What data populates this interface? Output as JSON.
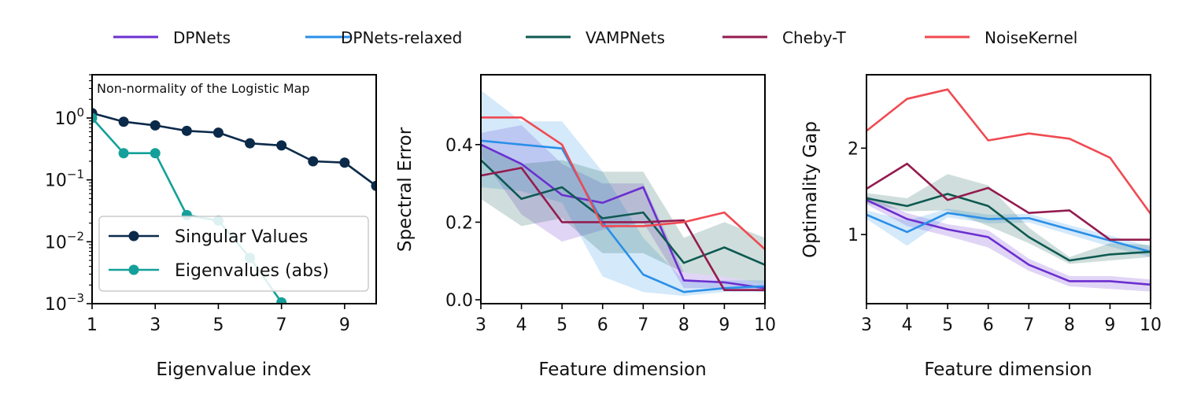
{
  "legend": [
    {
      "name": "DPNets",
      "color": "#6B2FD0"
    },
    {
      "name": "DPNets-relaxed",
      "color": "#2A8FE8"
    },
    {
      "name": "VAMPNets",
      "color": "#0E5A52"
    },
    {
      "name": "Cheby-T",
      "color": "#931C4F"
    },
    {
      "name": "NoiseKernel",
      "color": "#F04A52"
    }
  ],
  "chart_data": [
    {
      "type": "line",
      "title": "Non-normality of the Logistic Map",
      "xlabel": "Eigenvalue index",
      "ylabel": "",
      "yscale": "log",
      "xlim": [
        1,
        10
      ],
      "ylim": [
        0.001,
        5
      ],
      "xticks": [
        1,
        3,
        5,
        7,
        9
      ],
      "yticks": [
        1,
        0.1,
        0.01,
        0.001
      ],
      "ytick_labels": [
        {
          "base": "10",
          "exp": "0"
        },
        {
          "base": "10",
          "exp": "−1"
        },
        {
          "base": "10",
          "exp": "−2"
        },
        {
          "base": "10",
          "exp": "−3"
        }
      ],
      "series": [
        {
          "name": "Singular Values",
          "color": "#0B2A4A",
          "marker": "circle",
          "x": [
            1,
            2,
            3,
            4,
            5,
            6,
            7,
            8,
            9,
            10
          ],
          "values": [
            1.2,
            0.87,
            0.76,
            0.62,
            0.58,
            0.39,
            0.36,
            0.2,
            0.19,
            0.08
          ]
        },
        {
          "name": "Eigenvalues (abs)",
          "color": "#14A09A",
          "marker": "circle",
          "x": [
            1,
            2,
            3,
            4,
            5,
            6,
            7
          ],
          "values": [
            1.0,
            0.27,
            0.27,
            0.027,
            0.022,
            0.0055,
            0.00105
          ]
        }
      ],
      "legend_location": "lower-left"
    },
    {
      "type": "line",
      "xlabel": "Feature dimension",
      "ylabel": "Spectral Error",
      "xlim": [
        3,
        10
      ],
      "ylim": [
        -0.01,
        0.58
      ],
      "xticks": [
        3,
        4,
        5,
        6,
        7,
        8,
        9,
        10
      ],
      "yticks": [
        0.0,
        0.2,
        0.4
      ],
      "ytick_labels": [
        "0.0",
        "0.2",
        "0.4"
      ],
      "x": [
        3,
        4,
        5,
        6,
        7,
        8,
        9,
        10
      ],
      "series": [
        {
          "name": "DPNets",
          "values": [
            0.4,
            0.35,
            0.27,
            0.25,
            0.29,
            0.05,
            0.045,
            0.03
          ],
          "lower": [
            0.37,
            0.22,
            0.15,
            0.18,
            0.2,
            0.03,
            0.03,
            0.02
          ],
          "upper": [
            0.43,
            0.45,
            0.35,
            0.3,
            0.3,
            0.07,
            0.06,
            0.04
          ]
        },
        {
          "name": "DPNets-relaxed",
          "values": [
            0.41,
            0.4,
            0.39,
            0.2,
            0.065,
            0.02,
            0.03,
            0.035
          ],
          "lower": [
            0.29,
            0.28,
            0.25,
            0.06,
            0.02,
            0.01,
            0.02,
            0.02
          ],
          "upper": [
            0.54,
            0.46,
            0.46,
            0.33,
            0.16,
            0.05,
            0.05,
            0.05
          ]
        },
        {
          "name": "VAMPNets",
          "values": [
            0.36,
            0.26,
            0.29,
            0.21,
            0.225,
            0.095,
            0.135,
            0.09
          ],
          "lower": [
            0.26,
            0.19,
            0.21,
            0.12,
            0.12,
            0.07,
            0.06,
            0.04
          ],
          "upper": [
            0.4,
            0.35,
            0.36,
            0.33,
            0.33,
            0.16,
            0.2,
            0.16
          ]
        },
        {
          "name": "Cheby-T",
          "values": [
            0.32,
            0.34,
            0.2,
            0.2,
            0.2,
            0.205,
            0.025,
            0.025
          ]
        },
        {
          "name": "NoiseKernel",
          "values": [
            0.47,
            0.47,
            0.4,
            0.19,
            0.19,
            0.2,
            0.225,
            0.13
          ]
        }
      ]
    },
    {
      "type": "line",
      "xlabel": "Feature dimension",
      "ylabel": "Optimality Gap",
      "xlim": [
        3,
        10
      ],
      "ylim": [
        0.2,
        2.85
      ],
      "xticks": [
        3,
        4,
        5,
        6,
        7,
        8,
        9,
        10
      ],
      "yticks": [
        1,
        2
      ],
      "ytick_labels": [
        "1",
        "2"
      ],
      "x": [
        3,
        4,
        5,
        6,
        7,
        8,
        9,
        10
      ],
      "series": [
        {
          "name": "DPNets",
          "values": [
            1.4,
            1.18,
            1.06,
            0.97,
            0.65,
            0.46,
            0.46,
            0.42
          ],
          "lower": [
            1.35,
            1.1,
            0.98,
            0.85,
            0.58,
            0.4,
            0.37,
            0.34
          ],
          "upper": [
            1.45,
            1.25,
            1.12,
            1.05,
            0.72,
            0.52,
            0.52,
            0.48
          ]
        },
        {
          "name": "DPNets-relaxed",
          "values": [
            1.23,
            1.03,
            1.25,
            1.18,
            1.19,
            1.06,
            0.93,
            0.8
          ],
          "lower": [
            1.18,
            0.87,
            1.2,
            1.13,
            1.14,
            1.0,
            0.86,
            0.74
          ],
          "upper": [
            1.28,
            1.16,
            1.3,
            1.23,
            1.24,
            1.11,
            0.99,
            0.86
          ]
        },
        {
          "name": "VAMPNets",
          "values": [
            1.42,
            1.33,
            1.47,
            1.33,
            0.97,
            0.7,
            0.77,
            0.8
          ],
          "lower": [
            1.36,
            1.27,
            1.28,
            1.1,
            0.9,
            0.66,
            0.7,
            0.74
          ],
          "upper": [
            1.48,
            1.42,
            1.7,
            1.57,
            1.08,
            0.74,
            0.9,
            0.88
          ]
        },
        {
          "name": "Cheby-T",
          "values": [
            1.53,
            1.82,
            1.4,
            1.54,
            1.25,
            1.28,
            0.94,
            0.94
          ]
        },
        {
          "name": "NoiseKernel",
          "values": [
            2.2,
            2.57,
            2.68,
            2.09,
            2.17,
            2.11,
            1.89,
            1.24
          ]
        }
      ]
    }
  ]
}
